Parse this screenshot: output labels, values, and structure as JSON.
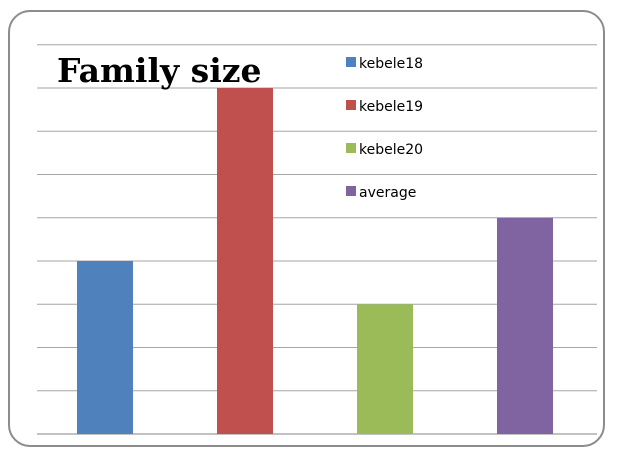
{
  "chart_data": {
    "type": "bar",
    "title": "Family size",
    "categories": [
      "kebele18",
      "kebele19",
      "kebele20",
      "average"
    ],
    "values": [
      4,
      8,
      3,
      5
    ],
    "colors": [
      "#4f81bd",
      "#c0504d",
      "#9bbb59",
      "#8064a2"
    ],
    "ylim": [
      0,
      8
    ],
    "grid": true,
    "legend": [
      "kebele18",
      "kebele19",
      "kebele20",
      "average"
    ],
    "legend_position": "top-right"
  }
}
